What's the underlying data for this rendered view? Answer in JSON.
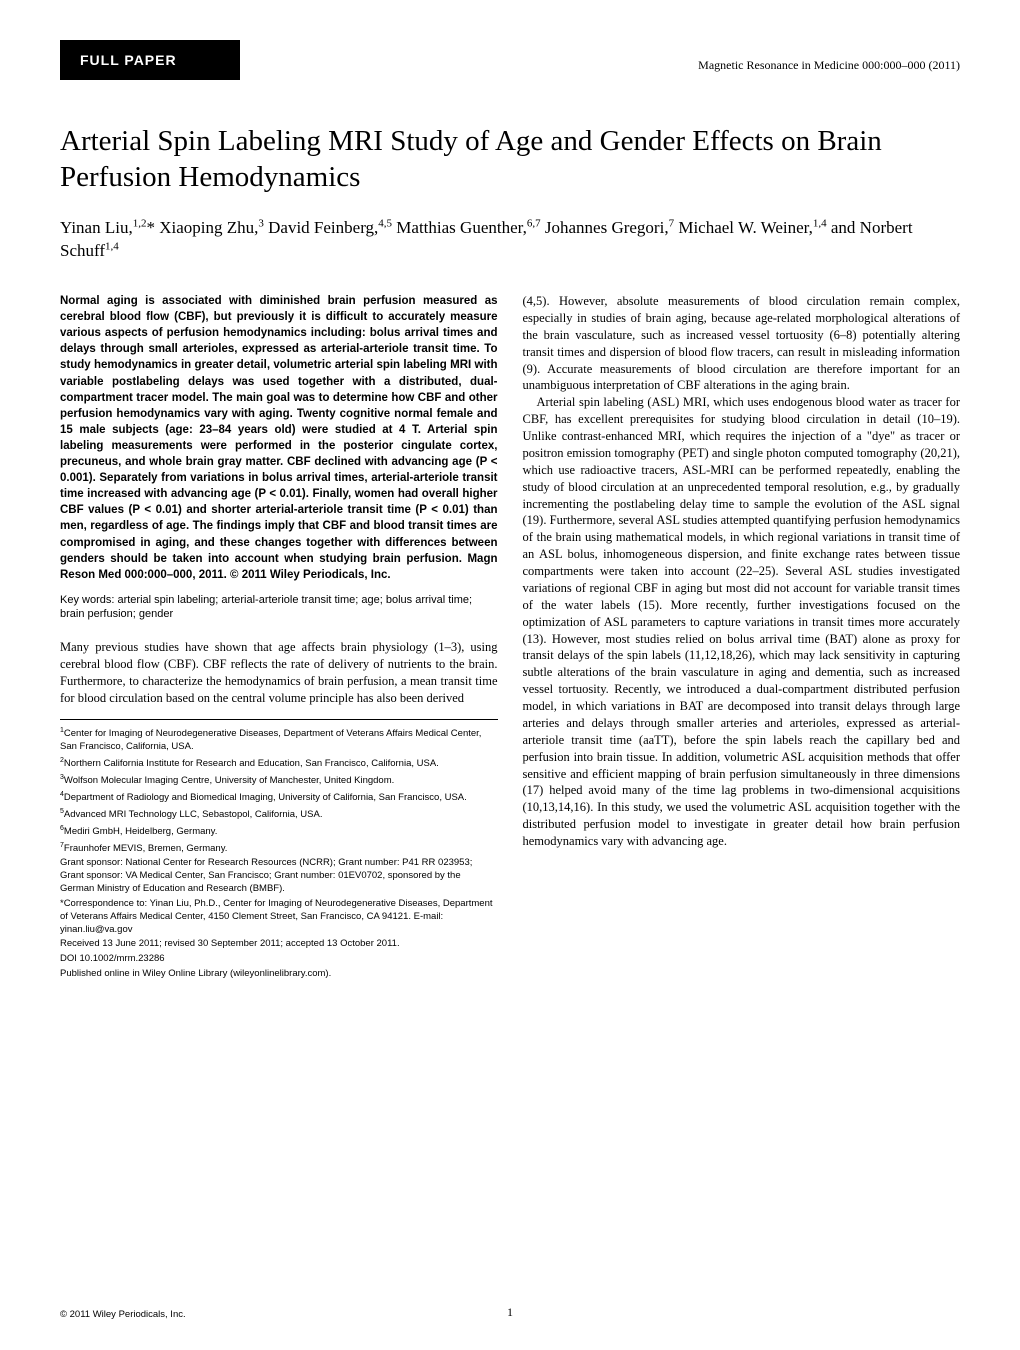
{
  "header": {
    "section_label": "FULL PAPER",
    "journal_info": "Magnetic Resonance in Medicine 000:000–000 (2011)"
  },
  "title": "Arterial Spin Labeling MRI Study of Age and Gender Effects on Brain Perfusion Hemodynamics",
  "authors_html": "Yinan Liu,<sup>1,2</sup>* Xiaoping Zhu,<sup>3</sup> David Feinberg,<sup>4,5</sup> Matthias Guenther,<sup>6,7</sup> Johannes Gregori,<sup>7</sup> Michael W. Weiner,<sup>1,4</sup> and Norbert Schuff<sup>1,4</sup>",
  "abstract": "Normal aging is associated with diminished brain perfusion measured as cerebral blood flow (CBF), but previously it is difficult to accurately measure various aspects of perfusion hemodynamics including: bolus arrival times and delays through small arterioles, expressed as arterial-arteriole transit time. To study hemodynamics in greater detail, volumetric arterial spin labeling MRI with variable postlabeling delays was used together with a distributed, dual-compartment tracer model. The main goal was to determine how CBF and other perfusion hemodynamics vary with aging. Twenty cognitive normal female and 15 male subjects (age: 23–84 years old) were studied at 4 T. Arterial spin labeling measurements were performed in the posterior cingulate cortex, precuneus, and whole brain gray matter. CBF declined with advancing age (P < 0.001). Separately from variations in bolus arrival times, arterial-arteriole transit time increased with advancing age (P < 0.01). Finally, women had overall higher CBF values (P < 0.01) and shorter arterial-arteriole transit time (P < 0.01) than men, regardless of age. The findings imply that CBF and blood transit times are compromised in aging, and these changes together with differences between genders should be taken into account when studying brain perfusion. Magn Reson Med 000:000–000, 2011. © 2011 Wiley Periodicals, Inc.",
  "keywords": "Key words: arterial spin labeling; arterial-arteriole transit time; age; bolus arrival time; brain perfusion; gender",
  "body": {
    "left_para": "Many previous studies have shown that age affects brain physiology (1–3), using cerebral blood flow (CBF). CBF reflects the rate of delivery of nutrients to the brain. Furthermore, to characterize the hemodynamics of brain perfusion, a mean transit time for blood circulation based on the central volume principle has also been derived",
    "right_para1": "(4,5). However, absolute measurements of blood circulation remain complex, especially in studies of brain aging, because age-related morphological alterations of the brain vasculature, such as increased vessel tortuosity (6–8) potentially altering transit times and dispersion of blood flow tracers, can result in misleading information (9). Accurate measurements of blood circulation are therefore important for an unambiguous interpretation of CBF alterations in the aging brain.",
    "right_para2": "Arterial spin labeling (ASL) MRI, which uses endogenous blood water as tracer for CBF, has excellent prerequisites for studying blood circulation in detail (10–19). Unlike contrast-enhanced MRI, which requires the injection of a \"dye\" as tracer or positron emission tomography (PET) and single photon computed tomography (20,21), which use radioactive tracers, ASL-MRI can be performed repeatedly, enabling the study of blood circulation at an unprecedented temporal resolution, e.g., by gradually incrementing the postlabeling delay time to sample the evolution of the ASL signal (19). Furthermore, several ASL studies attempted quantifying perfusion hemodynamics of the brain using mathematical models, in which regional variations in transit time of an ASL bolus, inhomogeneous dispersion, and finite exchange rates between tissue compartments were taken into account (22–25). Several ASL studies investigated variations of regional CBF in aging but most did not account for variable transit times of the water labels (15). More recently, further investigations focused on the optimization of ASL parameters to capture variations in transit times more accurately (13). However, most studies relied on bolus arrival time (BAT) alone as proxy for transit delays of the spin labels (11,12,18,26), which may lack sensitivity in capturing subtle alterations of the brain vasculature in aging and dementia, such as increased vessel tortuosity. Recently, we introduced a dual-compartment distributed perfusion model, in which variations in BAT are decomposed into transit delays through large arteries and delays through smaller arteries and arterioles, expressed as arterial-arteriole transit time (aaTT), before the spin labels reach the capillary bed and perfusion into brain tissue. In addition, volumetric ASL acquisition methods that offer sensitive and efficient mapping of brain perfusion simultaneously in three dimensions (17) helped avoid many of the time lag problems in two-dimensional acquisitions (10,13,14,16). In this study, we used the volumetric ASL acquisition together with the distributed perfusion model to investigate in greater detail how brain perfusion hemodynamics vary with advancing age."
  },
  "affiliations": {
    "a1": "Center for Imaging of Neurodegenerative Diseases, Department of Veterans Affairs Medical Center, San Francisco, California, USA.",
    "a2": "Northern California Institute for Research and Education, San Francisco, California, USA.",
    "a3": "Wolfson Molecular Imaging Centre, University of Manchester, United Kingdom.",
    "a4": "Department of Radiology and Biomedical Imaging, University of California, San Francisco, USA.",
    "a5": "Advanced MRI Technology LLC, Sebastopol, California, USA.",
    "a6": "Mediri GmbH, Heidelberg, Germany.",
    "a7": "Fraunhofer MEVIS, Bremen, Germany.",
    "grant": "Grant sponsor: National Center for Research Resources (NCRR); Grant number: P41 RR 023953; Grant sponsor: VA Medical Center, San Francisco; Grant number: 01EV0702, sponsored by the German Ministry of Education and Research (BMBF).",
    "correspondence": "*Correspondence to: Yinan Liu, Ph.D., Center for Imaging of Neurodegenerative Diseases, Department of Veterans Affairs Medical Center, 4150 Clement Street, San Francisco, CA 94121. E-mail: yinan.liu@va.gov",
    "received": "Received 13 June 2011; revised 30 September 2011; accepted 13 October 2011.",
    "doi": "DOI 10.1002/mrm.23286",
    "published": "Published online in Wiley Online Library (wileyonlinelibrary.com)."
  },
  "footer": {
    "copyright": "© 2011 Wiley Periodicals, Inc.",
    "page": "1"
  }
}
